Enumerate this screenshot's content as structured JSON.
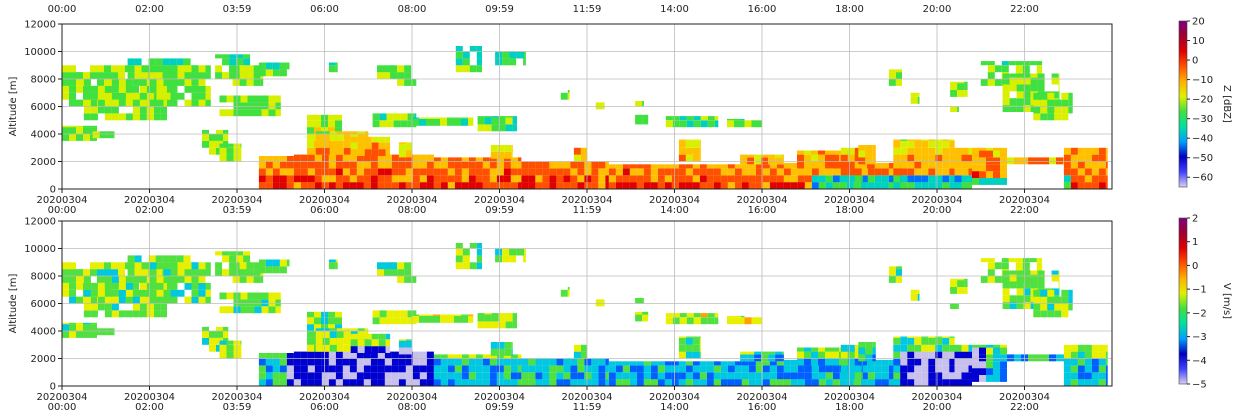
{
  "chart_data": [
    {
      "type": "heatmap",
      "variable": "Z",
      "ylabel": "Altitude [m]",
      "ylim": [
        0,
        12000
      ],
      "yticks": [
        0,
        2000,
        4000,
        6000,
        8000,
        10000,
        12000
      ],
      "grid": true,
      "top_xtick_labels": [
        "00:00",
        "02:00",
        "03:59",
        "06:00",
        "08:00",
        "09:59",
        "11:59",
        "14:00",
        "16:00",
        "18:00",
        "20:00",
        "22:00"
      ],
      "xtick_dates": [
        "20200304",
        "20200304",
        "20200304",
        "20200304",
        "20200304",
        "20200304",
        "20200304",
        "20200304",
        "20200304",
        "20200304",
        "20200304",
        "20200304"
      ],
      "xtick_times": [
        "00:00",
        "02:00",
        "03:59",
        "06:00",
        "08:00",
        "09:59",
        "11:59",
        "14:00",
        "16:00",
        "18:00",
        "20:00",
        "22:00"
      ],
      "colorbar": {
        "label": "Z [dBZ]",
        "ticks": [
          "20",
          "10",
          "0",
          "−10",
          "−20",
          "−30",
          "−40",
          "−50",
          "−60"
        ],
        "range": [
          -65,
          20
        ],
        "colormap": [
          "#d8d0f0",
          "#4040ff",
          "#0000c0",
          "#00a0ff",
          "#00e0a0",
          "#40e040",
          "#e0f000",
          "#ffb000",
          "#ff5000",
          "#e00000",
          "#a00030",
          "#800080"
        ]
      }
    },
    {
      "type": "heatmap",
      "variable": "V",
      "ylabel": "Altitude [m]",
      "ylim": [
        0,
        12000
      ],
      "yticks": [
        0,
        2000,
        4000,
        6000,
        8000,
        10000,
        12000
      ],
      "grid": true,
      "xtick_dates": [
        "20200304",
        "20200304",
        "20200304",
        "20200304",
        "20200304",
        "20200304",
        "20200304",
        "20200304",
        "20200304",
        "20200304",
        "20200304",
        "20200304"
      ],
      "xtick_times": [
        "00:00",
        "02:00",
        "03:59",
        "06:00",
        "08:00",
        "09:59",
        "11:59",
        "14:00",
        "16:00",
        "18:00",
        "20:00",
        "22:00"
      ],
      "colorbar": {
        "label": "V [m/s]",
        "ticks": [
          "2",
          "1",
          "0",
          "−1",
          "−2",
          "−3",
          "−4",
          "−5"
        ],
        "range": [
          -5,
          2
        ],
        "colormap": [
          "#d8d0f0",
          "#4040ff",
          "#0000c0",
          "#00a0ff",
          "#00e0a0",
          "#40e040",
          "#e0f000",
          "#ffb000",
          "#ff5000",
          "#e00000",
          "#a00030",
          "#800080"
        ]
      }
    }
  ]
}
